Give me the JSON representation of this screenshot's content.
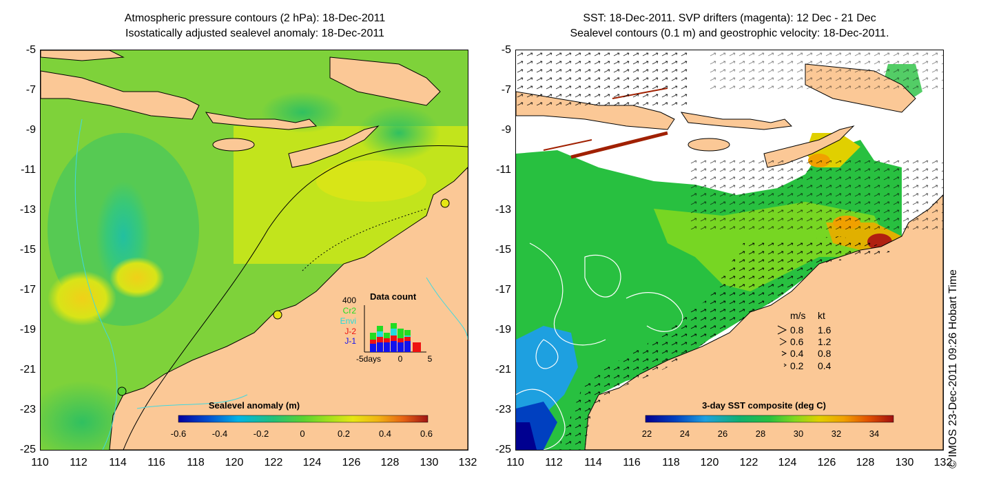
{
  "left_panel": {
    "title_line1": "Atmospheric pressure contours (2 hPa): 18-Dec-2011",
    "title_line2": "Isostatically adjusted sealevel anomaly: 18-Dec-2011",
    "colorbar_label": "Sealevel anomaly (m)",
    "colorbar_ticks": [
      "-0.6",
      "-0.4",
      "-0.2",
      "0",
      "0.2",
      "0.4",
      "0.6"
    ],
    "data_count": {
      "title": "Data count",
      "max_label": "400",
      "series": [
        {
          "name": "Cr2",
          "color": "#22dd22"
        },
        {
          "name": "Envi",
          "color": "#22dddd"
        },
        {
          "name": "J-2",
          "color": "#ee1111"
        },
        {
          "name": "J-1",
          "color": "#1111ee"
        }
      ],
      "x_ticks": [
        "-5days",
        "0",
        "5"
      ]
    }
  },
  "right_panel": {
    "title_line1": "SST: 18-Dec-2011. SVP drifters (magenta): 12 Dec - 21 Dec",
    "title_line2": "Sealevel contours (0.1 m) and geostrophic velocity: 18-Dec-2011.",
    "colorbar_label": "3-day SST composite (deg C)",
    "colorbar_ticks": [
      "22",
      "24",
      "26",
      "28",
      "30",
      "32",
      "34"
    ],
    "velocity_legend": {
      "header_ms": "m/s",
      "header_kt": "kt",
      "rows": [
        {
          "ms": "0.8",
          "kt": "1.6"
        },
        {
          "ms": "0.6",
          "kt": "1.2"
        },
        {
          "ms": "0.4",
          "kt": "0.8"
        },
        {
          "ms": "0.2",
          "kt": "0.4"
        }
      ]
    }
  },
  "axes": {
    "y_ticks": [
      "-5",
      "-7",
      "-9",
      "-11",
      "-13",
      "-15",
      "-17",
      "-19",
      "-21",
      "-23",
      "-25"
    ],
    "x_ticks": [
      "110",
      "112",
      "114",
      "116",
      "118",
      "120",
      "122",
      "124",
      "126",
      "128",
      "130",
      "132"
    ]
  },
  "credit": "© IMOS 23-Dec-2011 09:26 Hobart Time",
  "colors": {
    "land": "#fbc896",
    "anomaly_scale": [
      "#0000a0",
      "#0050d0",
      "#00b4e6",
      "#22c07a",
      "#5ad232",
      "#a0e01e",
      "#e6e614",
      "#f0b414",
      "#e66414",
      "#a01414"
    ],
    "sst_scale": [
      "#000090",
      "#0040c0",
      "#1ea0e0",
      "#10b070",
      "#28c040",
      "#80d820",
      "#e0d000",
      "#f0a000",
      "#e05000",
      "#a01010"
    ]
  }
}
